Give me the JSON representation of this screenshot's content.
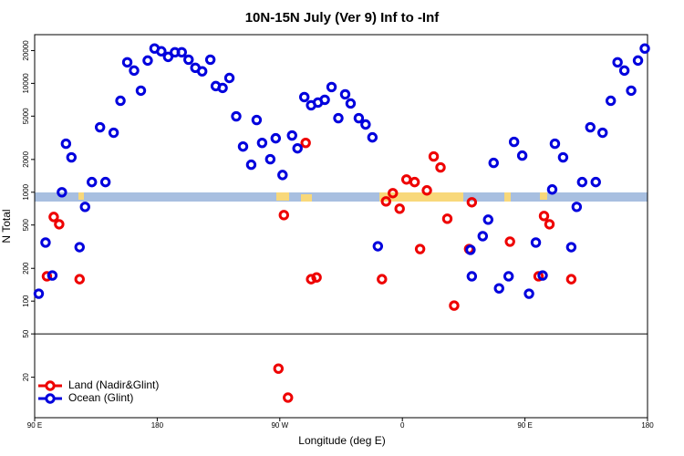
{
  "chart_data": {
    "type": "scatter",
    "title": "10N-15N July (Ver 9)   Inf to -Inf",
    "x_label": "Longitude (deg E)",
    "y_label": "N Total",
    "log_y": true,
    "xlim": [
      90,
      540
    ],
    "ylim": [
      8.5,
      28000
    ],
    "xticks": [
      {
        "value": 90,
        "label": "90 E"
      },
      180,
      {
        "value": 270,
        "label": "90 W"
      },
      {
        "value": 360,
        "label": "0"
      },
      {
        "value": 450,
        "label": "90 E"
      },
      {
        "value": 540,
        "label": "180"
      }
    ],
    "yticks": [
      20,
      50,
      100,
      200,
      500,
      1000,
      2000,
      5000,
      10000,
      20000
    ],
    "reference_line": 50,
    "legend": "bottom-left",
    "series": [
      {
        "name": "Land (Nadir&Glint)",
        "color": "#ee0000",
        "x": [
          99,
          104,
          108,
          123,
          269,
          273,
          276,
          289,
          293,
          297,
          345,
          348,
          353,
          358,
          363,
          369,
          373,
          378,
          383,
          388,
          393,
          398,
          409,
          411,
          439,
          460,
          464,
          468,
          484
        ],
        "values": [
          169,
          593,
          508,
          159,
          24,
          617,
          13,
          2840,
          159,
          165,
          159,
          824,
          981,
          706,
          1310,
          1240,
          301,
          1040,
          2130,
          1690,
          571,
          91,
          301,
          809,
          352,
          169,
          605,
          508,
          159
        ]
      },
      {
        "name": "Ocean (Glint)",
        "color": "#0000dd",
        "x": [
          93,
          98,
          103,
          110,
          113,
          117,
          123,
          127,
          132,
          138,
          142,
          148,
          153,
          158,
          163,
          168,
          173,
          178,
          183,
          188,
          193,
          198,
          203,
          208,
          213,
          219,
          223,
          228,
          233,
          238,
          243,
          249,
          253,
          257,
          263,
          267,
          272,
          279,
          283,
          288,
          293,
          298,
          303,
          308,
          313,
          318,
          322,
          328,
          333,
          338,
          342,
          410,
          411,
          419,
          423,
          427,
          431,
          438,
          442,
          448,
          453,
          458,
          463,
          470,
          472,
          478,
          484,
          488,
          492,
          498,
          502,
          507,
          513,
          518,
          523,
          528,
          533,
          538
        ],
        "values": [
          117,
          345,
          172,
          1000,
          2790,
          2090,
          313,
          734,
          1240,
          3950,
          1240,
          3520,
          6920,
          15600,
          13100,
          8570,
          16200,
          20900,
          19700,
          17500,
          19300,
          19300,
          16500,
          13900,
          12900,
          16500,
          9440,
          9080,
          11200,
          4980,
          2630,
          1790,
          4610,
          2840,
          2010,
          3130,
          1440,
          3320,
          2530,
          7480,
          6290,
          6660,
          7060,
          9250,
          4790,
          7930,
          6530,
          4790,
          4190,
          3190,
          319,
          296,
          169,
          395,
          560,
          1860,
          131,
          169,
          2900,
          2170,
          117,
          345,
          172,
          1060,
          2790,
          2090,
          313,
          734,
          1240,
          3950,
          1240,
          3520,
          6920,
          15600,
          13100,
          8570,
          16200,
          20900
        ]
      }
    ]
  }
}
